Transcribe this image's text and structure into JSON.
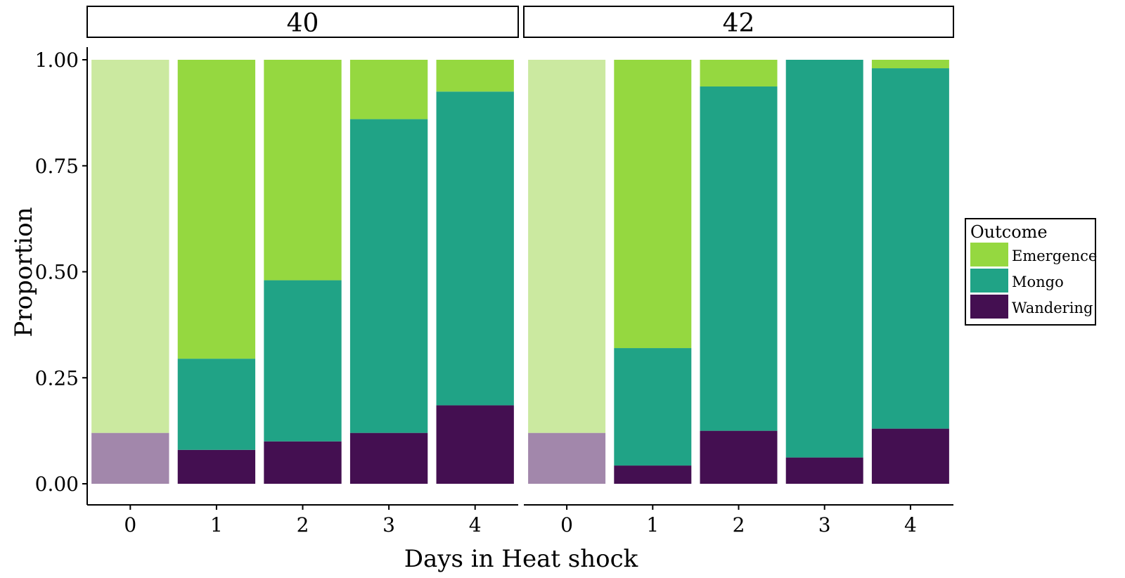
{
  "chart_data": {
    "type": "bar",
    "stacked": true,
    "xlabel": "Days in Heat shock",
    "ylabel": "Proportion",
    "ylim": [
      0,
      1
    ],
    "yticks": [
      "0.00",
      "0.25",
      "0.50",
      "0.75",
      "1.00"
    ],
    "grid": false,
    "categories": [
      "0",
      "1",
      "2",
      "3",
      "4"
    ],
    "legend": {
      "title": "Outcome",
      "placement": "right",
      "items": [
        {
          "label": "Emergence",
          "color": "#95d840"
        },
        {
          "label": "Mongo",
          "color": "#20a386"
        },
        {
          "label": "Wandering",
          "color": "#440f51"
        }
      ]
    },
    "faded_category": "0",
    "faded_colors": {
      "Emergence": "#cbe9a0",
      "Wandering": "#a287ab"
    },
    "panels": [
      {
        "label": "40",
        "series": [
          {
            "name": "Wandering",
            "values": [
              0.12,
              0.08,
              0.1,
              0.12,
              0.185
            ]
          },
          {
            "name": "Mongo",
            "values": [
              0.0,
              0.215,
              0.38,
              0.74,
              0.74
            ]
          },
          {
            "name": "Emergence",
            "values": [
              0.88,
              0.705,
              0.52,
              0.14,
              0.075
            ]
          }
        ]
      },
      {
        "label": "42",
        "series": [
          {
            "name": "Wandering",
            "values": [
              0.12,
              0.043,
              0.125,
              0.062,
              0.13
            ]
          },
          {
            "name": "Mongo",
            "values": [
              0.0,
              0.277,
              0.812,
              0.938,
              0.85
            ]
          },
          {
            "name": "Emergence",
            "values": [
              0.88,
              0.68,
              0.063,
              0.0,
              0.02
            ]
          }
        ]
      }
    ]
  }
}
